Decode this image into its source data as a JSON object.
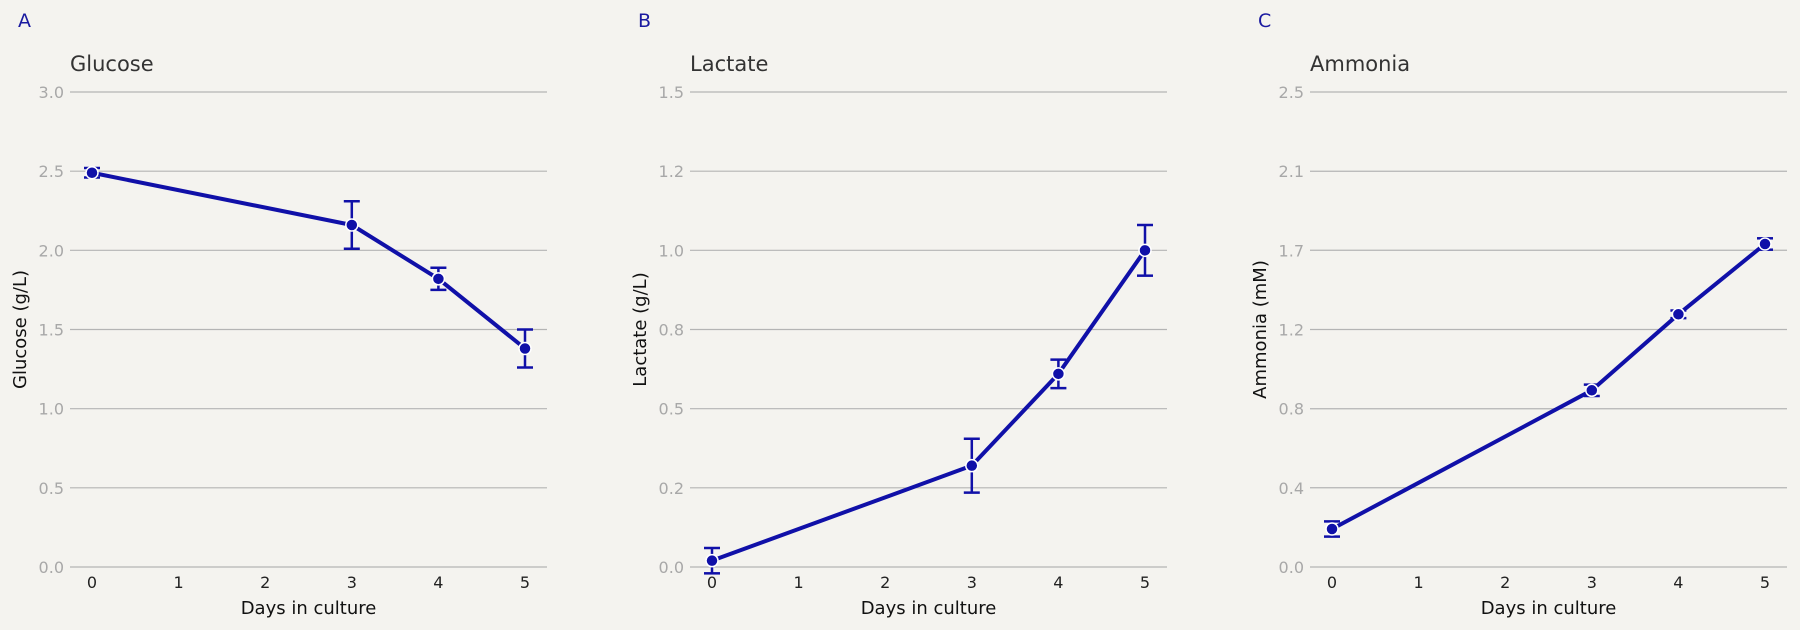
{
  "colors": {
    "background": "#f4f3ef",
    "series": "#1010a8",
    "grid": "#b4b4b4",
    "tick_label": "#a8a8a8",
    "title": "#333333",
    "panel_letter": "#1a1aa0"
  },
  "chart_data": [
    {
      "type": "line",
      "panel_label": "A",
      "title": "Glucose",
      "xlabel": "Days in culture",
      "ylabel": "Glucose (g/L)",
      "xlim": [
        0,
        5
      ],
      "ylim": [
        0,
        3.0
      ],
      "xticks": [
        0,
        1,
        2,
        3,
        4,
        5
      ],
      "xtick_labels": [
        "0",
        "1",
        "2",
        "3",
        "4",
        "5"
      ],
      "yticks": [
        0,
        0.5,
        1.0,
        1.5,
        2.0,
        2.5,
        3.0
      ],
      "ytick_labels": [
        "0.0",
        "0.5",
        "1.0",
        "1.5",
        "2.0",
        "2.5",
        "3.0"
      ],
      "grid": true,
      "series": [
        {
          "x": [
            0,
            3,
            4,
            5
          ],
          "y": [
            2.49,
            2.16,
            1.82,
            1.38
          ],
          "error": [
            0.03,
            0.15,
            0.07,
            0.12
          ]
        }
      ]
    },
    {
      "type": "line",
      "panel_label": "B",
      "title": "Lactate",
      "xlabel": "Days in culture",
      "ylabel": "Lactate (g/L)",
      "xlim": [
        0,
        5
      ],
      "ylim": [
        0,
        1.5
      ],
      "xticks": [
        0,
        1,
        2,
        3,
        4,
        5
      ],
      "xtick_labels": [
        "0",
        "1",
        "2",
        "3",
        "4",
        "5"
      ],
      "yticks": [
        0,
        0.25,
        0.5,
        0.75,
        1.0,
        1.25,
        1.5
      ],
      "ytick_labels": [
        "0.0",
        "0.2",
        "0.5",
        "0.8",
        "1.0",
        "1.2",
        "1.5"
      ],
      "grid": true,
      "series": [
        {
          "x": [
            0,
            3,
            4,
            5
          ],
          "y": [
            0.02,
            0.32,
            0.61,
            1.0
          ],
          "error": [
            0.04,
            0.085,
            0.045,
            0.08
          ]
        }
      ]
    },
    {
      "type": "line",
      "panel_label": "C",
      "title": "Ammonia",
      "xlabel": "Days in culture",
      "ylabel": "Ammonia (mM)",
      "xlim": [
        0,
        5
      ],
      "ylim": [
        0,
        2.5
      ],
      "xticks": [
        0,
        1,
        2,
        3,
        4,
        5
      ],
      "xtick_labels": [
        "0",
        "1",
        "2",
        "3",
        "4",
        "5"
      ],
      "yticks": [
        0,
        0.417,
        0.833,
        1.25,
        1.667,
        2.083,
        2.5
      ],
      "ytick_labels": [
        "0.0",
        "0.4",
        "0.8",
        "1.2",
        "1.7",
        "2.1",
        "2.5"
      ],
      "grid": true,
      "series": [
        {
          "x": [
            0,
            3,
            4,
            5
          ],
          "y": [
            0.2,
            0.93,
            1.33,
            1.7
          ],
          "error": [
            0.04,
            0.03,
            0.02,
            0.03
          ]
        }
      ]
    }
  ]
}
